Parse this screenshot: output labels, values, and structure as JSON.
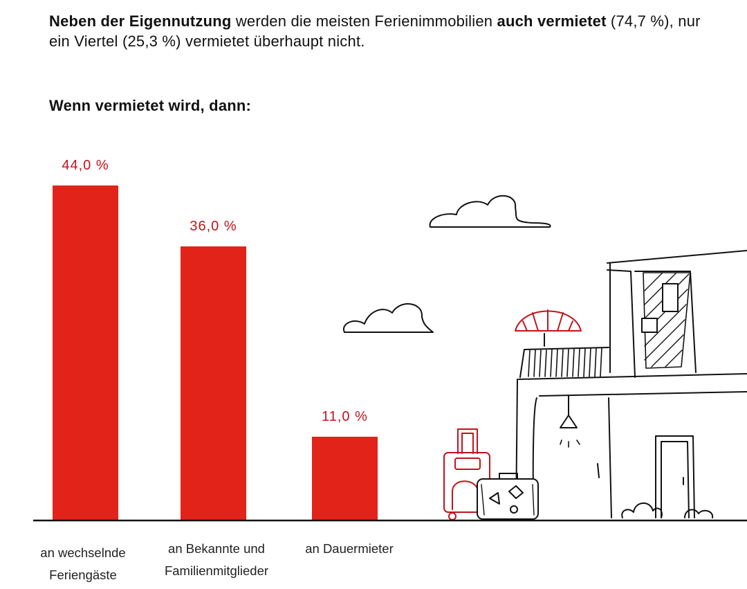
{
  "headline": {
    "bold_1": "Neben der Eigennutzung",
    "text_1": " werden die meisten Ferienimmobilien ",
    "bold_2": "auch vermietet",
    "text_2": " (74,7 %), nur ein Viertel (25,3 %) vermietet überhaupt nicht."
  },
  "subtitle": "Wenn vermietet wird, dann:",
  "colors": {
    "bar": "#e2231a",
    "label": "#c0141b",
    "line": "#111111"
  },
  "chart_data": {
    "type": "bar",
    "title": "Wenn vermietet wird, dann:",
    "categories": [
      "an wechselnde Feriengäste",
      "an Bekannte und Familienmitglieder",
      "an Dauermieter"
    ],
    "category_lines": [
      [
        "an wechselnde",
        "Feriengäste"
      ],
      [
        "an Bekannte und",
        "Familienmitglieder"
      ],
      [
        "an Dauermieter"
      ]
    ],
    "values": [
      44.0,
      36.0,
      11.0
    ],
    "value_labels": [
      "44,0 %",
      "36,0 %",
      "11,0 %"
    ],
    "ylim": [
      0,
      50
    ],
    "xlabel": "",
    "ylabel": "",
    "grid": false,
    "legend": "none"
  },
  "illustration": {
    "icons": [
      "cloud-icon",
      "cloud-icon",
      "house-icon",
      "parasol-icon",
      "suitcase-icon",
      "trolley-icon",
      "bush-icon"
    ]
  }
}
